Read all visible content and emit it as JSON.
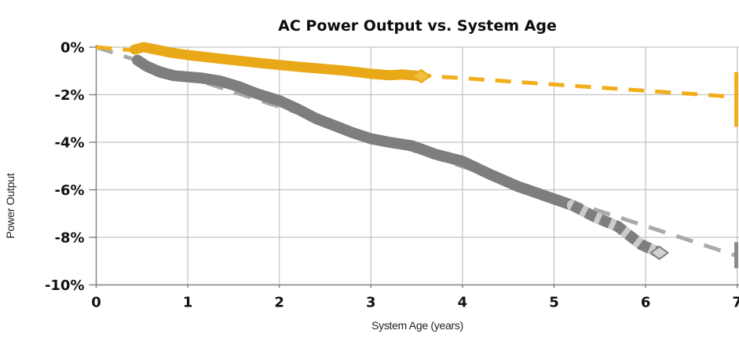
{
  "chart_data": {
    "type": "line",
    "title": "AC Power Output vs. System Age",
    "xlabel": "System Age (years)",
    "ylabel": "Power Output",
    "xlim": [
      0,
      7
    ],
    "ylim": [
      -10,
      0
    ],
    "grid": true,
    "legend": "none",
    "colors": {
      "grid": "#C3C3C3",
      "axis": "#808080",
      "yellow": "#E8A818",
      "yellow_trend": "#F1AF1C",
      "gray": "#7E7E7E",
      "gray_trend": "#A9A9A9"
    },
    "x_ticks": [
      {
        "label": "0",
        "value": 0
      },
      {
        "label": "1",
        "value": 1
      },
      {
        "label": "2",
        "value": 2
      },
      {
        "label": "3",
        "value": 3
      },
      {
        "label": "4",
        "value": 4
      },
      {
        "label": "5",
        "value": 5
      },
      {
        "label": "6",
        "value": 6
      },
      {
        "label": "7",
        "value": 7
      }
    ],
    "y_ticks": [
      {
        "label": "0%",
        "value": 0
      },
      {
        "label": "-2%",
        "value": -2
      },
      {
        "label": "-4%",
        "value": -4
      },
      {
        "label": "-6%",
        "value": -6
      },
      {
        "label": "-8%",
        "value": -8
      },
      {
        "label": "-10%",
        "value": -10
      }
    ],
    "series": [
      {
        "id": "gray-trend-line",
        "label": "gray dashed trend (fit)",
        "kind": "trend",
        "color": "#A9A9A9",
        "width": 5,
        "dash": [
          22,
          15
        ],
        "points": [
          [
            0,
            0
          ],
          [
            7,
            -8.78
          ]
        ]
      },
      {
        "id": "yellow-trend-line",
        "label": "yellow dashed trend (fit)",
        "kind": "trend",
        "color": "#F1AF1C",
        "width": 5,
        "dash": [
          20,
          14
        ],
        "points": [
          [
            0,
            0
          ],
          [
            3.6,
            -1.2
          ],
          [
            7,
            -2.1
          ]
        ]
      },
      {
        "id": "gray-band",
        "label": "gray measured series",
        "kind": "band",
        "color": "#7E7E7E",
        "width": 14,
        "points": [
          [
            0.45,
            -0.55
          ],
          [
            0.55,
            -0.8
          ],
          [
            0.7,
            -1.05
          ],
          [
            0.85,
            -1.2
          ],
          [
            1.0,
            -1.25
          ],
          [
            1.15,
            -1.3
          ],
          [
            1.35,
            -1.42
          ],
          [
            1.55,
            -1.65
          ],
          [
            1.75,
            -1.95
          ],
          [
            2.0,
            -2.25
          ],
          [
            2.2,
            -2.6
          ],
          [
            2.4,
            -3.0
          ],
          [
            2.6,
            -3.3
          ],
          [
            2.8,
            -3.6
          ],
          [
            3.0,
            -3.85
          ],
          [
            3.2,
            -4.0
          ],
          [
            3.45,
            -4.15
          ],
          [
            3.7,
            -4.5
          ],
          [
            4.0,
            -4.8
          ],
          [
            4.3,
            -5.35
          ],
          [
            4.6,
            -5.85
          ],
          [
            4.9,
            -6.25
          ],
          [
            5.2,
            -6.65
          ]
        ]
      },
      {
        "id": "gray-band-hatched",
        "label": "gray measured series (sparse/hatched tail)",
        "kind": "hatched",
        "color": "#7E7E7E",
        "gap_color": "#CBCBCB",
        "width": 14,
        "dash": [
          13,
          7
        ],
        "end_marker": true,
        "marker_fill": "#D2D2D2",
        "points": [
          [
            5.2,
            -6.65
          ],
          [
            5.45,
            -7.15
          ],
          [
            5.7,
            -7.55
          ],
          [
            5.95,
            -8.3
          ],
          [
            6.15,
            -8.65
          ]
        ]
      },
      {
        "id": "yellow-band",
        "label": "yellow measured series",
        "kind": "band",
        "color": "#E8A818",
        "width": 13,
        "end_marker": true,
        "marker_fill": "#F2BE3D",
        "points": [
          [
            0.42,
            -0.1
          ],
          [
            0.52,
            0.0
          ],
          [
            0.65,
            -0.1
          ],
          [
            0.8,
            -0.22
          ],
          [
            1.0,
            -0.33
          ],
          [
            1.25,
            -0.44
          ],
          [
            1.5,
            -0.55
          ],
          [
            1.75,
            -0.65
          ],
          [
            2.0,
            -0.75
          ],
          [
            2.25,
            -0.84
          ],
          [
            2.5,
            -0.92
          ],
          [
            2.75,
            -1.0
          ],
          [
            3.0,
            -1.12
          ],
          [
            3.2,
            -1.18
          ],
          [
            3.35,
            -1.15
          ],
          [
            3.55,
            -1.22
          ]
        ]
      },
      {
        "id": "yellow-errorbar",
        "label": "yellow projection range at year 7",
        "kind": "errorbar",
        "color": "#F1AF1C",
        "width": 5,
        "x": 6.99,
        "y1": -1.05,
        "y2": -3.35
      },
      {
        "id": "gray-errorbar",
        "label": "gray projection range at year 7",
        "kind": "errorbar",
        "color": "#8A8A8A",
        "width": 5,
        "x": 6.99,
        "y1": -8.2,
        "y2": -9.3
      }
    ]
  }
}
